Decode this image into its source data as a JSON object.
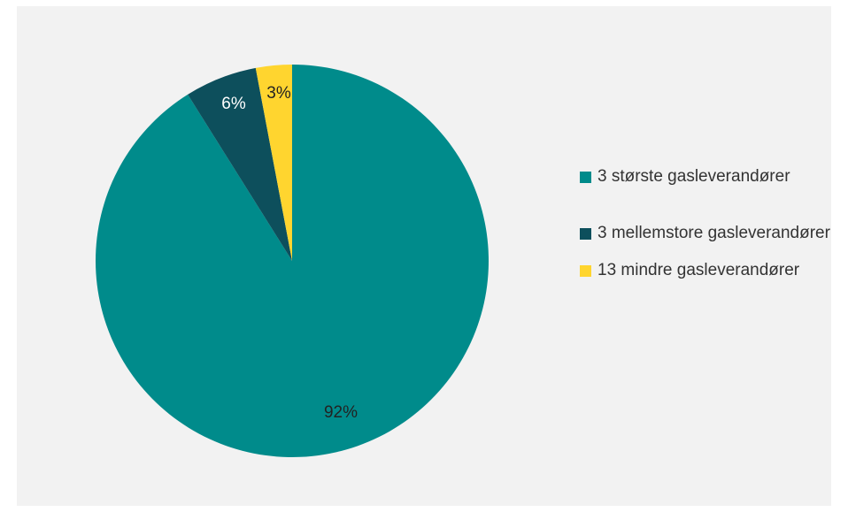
{
  "chart_data": {
    "type": "pie",
    "title": "",
    "categories": [
      "3 største gasleverandører",
      "3 mellemstore gasleverandører",
      "13 mindre gasleverandører"
    ],
    "values": [
      92,
      6,
      3
    ],
    "value_labels": [
      "92%",
      "6%",
      "3%"
    ],
    "colors": [
      "#008b8b",
      "#0d4f5c",
      "#ffd52f"
    ],
    "label_colors": [
      "#222222",
      "#ffffff",
      "#222222"
    ],
    "legend_position": "right",
    "start_angle_deg": 0,
    "direction": "clockwise"
  },
  "legend": {
    "items": [
      {
        "label": "3 største gasleverandører",
        "color": "#008b8b"
      },
      {
        "label": "3 mellemstore gasleverandører",
        "color": "#0d4f5c"
      },
      {
        "label": "13 mindre gasleverandører",
        "color": "#ffd52f"
      }
    ]
  }
}
